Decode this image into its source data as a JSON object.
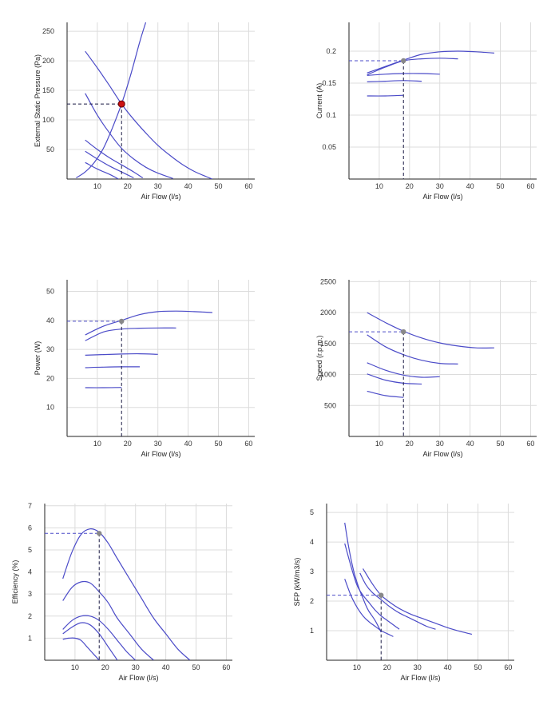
{
  "colors": {
    "curve": "#4b4bc8",
    "op_primary": "#cc1111",
    "op_secondary": "#888888",
    "guide_dark": "#1a1a44",
    "guide_light": "#4b4bc8"
  },
  "chart_data": [
    {
      "id": "pressure",
      "type": "line",
      "xlabel": "Air Flow (l/s)",
      "ylabel": "External Static Pressure (Pa)",
      "xlim": [
        0,
        62
      ],
      "ylim": [
        0,
        265
      ],
      "xticks": [
        10,
        20,
        30,
        40,
        50,
        60
      ],
      "yticks": [
        50,
        100,
        150,
        200,
        250
      ],
      "ytick_labels": [
        "50",
        "100",
        "150",
        "200",
        "250"
      ],
      "series": [
        {
          "x": [
            6,
            10,
            14,
            18,
            22,
            26,
            30,
            35
          ],
          "y": [
            145,
            108,
            78,
            52,
            34,
            20,
            10,
            1
          ]
        },
        {
          "x": [
            6,
            10,
            14,
            18,
            22,
            26,
            30,
            34,
            38,
            42,
            46,
            48
          ],
          "y": [
            216,
            188,
            158,
            127,
            101,
            78,
            57,
            40,
            25,
            13,
            4,
            0
          ]
        },
        {
          "x": [
            6,
            10,
            14,
            18,
            22,
            25
          ],
          "y": [
            66,
            50,
            36,
            24,
            12,
            2
          ]
        },
        {
          "x": [
            6,
            10,
            14,
            18,
            22
          ],
          "y": [
            47,
            34,
            22,
            12,
            2
          ]
        },
        {
          "x": [
            6,
            10,
            14,
            17
          ],
          "y": [
            28,
            17,
            8,
            0
          ]
        },
        {
          "x": [
            3,
            6,
            9,
            12,
            15,
            18,
            21,
            24,
            26
          ],
          "y": [
            2,
            12,
            28,
            52,
            87,
            127,
            176,
            232,
            265
          ]
        }
      ],
      "operating_point": {
        "x": 18,
        "y": 127,
        "style": "primary"
      }
    },
    {
      "id": "current",
      "type": "line",
      "xlabel": "Air Flow (l/s)",
      "ylabel": "Current (A)",
      "xlim": [
        0,
        62
      ],
      "ylim": [
        0,
        0.245
      ],
      "xticks": [
        10,
        20,
        30,
        40,
        50,
        60
      ],
      "yticks": [
        0.05,
        0.1,
        0.15,
        0.2
      ],
      "ytick_labels": [
        "0.05",
        "0.1",
        "0.15",
        "0.2"
      ],
      "series": [
        {
          "x": [
            6,
            12,
            18,
            24,
            30,
            36,
            42,
            48
          ],
          "y": [
            0.166,
            0.176,
            0.186,
            0.195,
            0.199,
            0.2,
            0.199,
            0.197
          ]
        },
        {
          "x": [
            6,
            12,
            18,
            24,
            30,
            36
          ],
          "y": [
            0.163,
            0.175,
            0.185,
            0.188,
            0.189,
            0.188
          ]
        },
        {
          "x": [
            6,
            12,
            18,
            24,
            30
          ],
          "y": [
            0.162,
            0.164,
            0.165,
            0.165,
            0.164
          ]
        },
        {
          "x": [
            6,
            12,
            18,
            24
          ],
          "y": [
            0.152,
            0.153,
            0.154,
            0.153
          ]
        },
        {
          "x": [
            6,
            12,
            18
          ],
          "y": [
            0.13,
            0.13,
            0.131
          ]
        }
      ],
      "operating_point": {
        "x": 18,
        "y": 0.185,
        "style": "secondary"
      }
    },
    {
      "id": "power",
      "type": "line",
      "xlabel": "Air Flow (l/s)",
      "ylabel": "Power (W)",
      "xlim": [
        0,
        62
      ],
      "ylim": [
        0,
        54
      ],
      "xticks": [
        10,
        20,
        30,
        40,
        50,
        60
      ],
      "yticks": [
        10,
        20,
        30,
        40,
        50
      ],
      "ytick_labels": [
        "10",
        "20",
        "30",
        "40",
        "50"
      ],
      "series": [
        {
          "x": [
            6,
            12,
            18,
            24,
            30,
            36,
            42,
            48
          ],
          "y": [
            35,
            38,
            40,
            42,
            43,
            43.2,
            43,
            42.7
          ]
        },
        {
          "x": [
            6,
            12,
            18,
            24,
            30,
            36
          ],
          "y": [
            33,
            36,
            37,
            37.3,
            37.4,
            37.4
          ]
        },
        {
          "x": [
            6,
            12,
            18,
            24,
            30
          ],
          "y": [
            28,
            28.2,
            28.4,
            28.5,
            28.3
          ]
        },
        {
          "x": [
            6,
            12,
            18,
            24
          ],
          "y": [
            23.7,
            23.9,
            24,
            24
          ]
        },
        {
          "x": [
            6,
            12,
            18
          ],
          "y": [
            16.8,
            16.8,
            16.9
          ]
        }
      ],
      "operating_point": {
        "x": 18,
        "y": 39.7,
        "style": "secondary"
      }
    },
    {
      "id": "speed",
      "type": "line",
      "xlabel": "Air Flow (l/s)",
      "ylabel": "Speed (r.p.m.)",
      "xlim": [
        0,
        62
      ],
      "ylim": [
        0,
        2530
      ],
      "xticks": [
        10,
        20,
        30,
        40,
        50,
        60
      ],
      "yticks": [
        500,
        1000,
        1500,
        2000,
        2500
      ],
      "ytick_labels": [
        "500",
        "1000",
        "1500",
        "2000",
        "2500"
      ],
      "series": [
        {
          "x": [
            6,
            12,
            18,
            24,
            30,
            36,
            42,
            48
          ],
          "y": [
            2000,
            1840,
            1700,
            1590,
            1510,
            1460,
            1430,
            1430
          ]
        },
        {
          "x": [
            6,
            12,
            18,
            24,
            30,
            36
          ],
          "y": [
            1640,
            1450,
            1320,
            1230,
            1180,
            1170
          ]
        },
        {
          "x": [
            6,
            12,
            18,
            24,
            30
          ],
          "y": [
            1190,
            1070,
            990,
            955,
            965
          ]
        },
        {
          "x": [
            6,
            12,
            18,
            24
          ],
          "y": [
            1010,
            910,
            860,
            845
          ]
        },
        {
          "x": [
            6,
            12,
            18
          ],
          "y": [
            730,
            660,
            630
          ]
        }
      ],
      "operating_point": {
        "x": 18,
        "y": 1690,
        "style": "secondary"
      }
    },
    {
      "id": "efficiency",
      "type": "line",
      "xlabel": "Air Flow (l/s)",
      "ylabel": "Efficiency (%)",
      "xlim": [
        0,
        62
      ],
      "ylim": [
        0,
        7.1
      ],
      "xticks": [
        10,
        20,
        30,
        40,
        50,
        60
      ],
      "yticks": [
        1,
        2,
        3,
        4,
        5,
        6,
        7
      ],
      "ytick_labels": [
        "1",
        "2",
        "3",
        "4",
        "5",
        "6",
        "7"
      ],
      "series": [
        {
          "x": [
            6,
            9,
            12,
            15,
            18,
            21,
            24,
            28,
            32,
            36,
            40,
            44,
            48
          ],
          "y": [
            3.7,
            4.9,
            5.7,
            5.95,
            5.8,
            5.3,
            4.6,
            3.7,
            2.8,
            1.9,
            1.2,
            0.5,
            0
          ]
        },
        {
          "x": [
            6,
            9,
            12,
            15,
            18,
            21,
            24,
            28,
            32,
            36
          ],
          "y": [
            2.7,
            3.3,
            3.55,
            3.5,
            3.1,
            2.6,
            1.9,
            1.2,
            0.5,
            0
          ]
        },
        {
          "x": [
            6,
            9,
            12,
            15,
            18,
            21,
            24,
            27,
            30
          ],
          "y": [
            1.4,
            1.8,
            2.0,
            2.0,
            1.8,
            1.4,
            0.9,
            0.4,
            0
          ]
        },
        {
          "x": [
            6,
            9,
            12,
            15,
            18,
            21,
            24
          ],
          "y": [
            1.2,
            1.5,
            1.7,
            1.6,
            1.2,
            0.6,
            0
          ]
        },
        {
          "x": [
            6,
            8,
            10,
            12,
            14,
            16,
            18
          ],
          "y": [
            0.95,
            1.0,
            1.0,
            0.9,
            0.6,
            0.3,
            0
          ]
        }
      ],
      "operating_point": {
        "x": 18,
        "y": 5.75,
        "style": "secondary"
      }
    },
    {
      "id": "sfp",
      "type": "line",
      "xlabel": "Air Flow (l/s)",
      "ylabel": "SFP (kW/m3/s)",
      "xlim": [
        0,
        62
      ],
      "ylim": [
        0,
        5.3
      ],
      "xticks": [
        10,
        20,
        30,
        40,
        50,
        60
      ],
      "yticks": [
        1,
        2,
        3,
        4,
        5
      ],
      "ytick_labels": [
        "1",
        "2",
        "3",
        "4",
        "5"
      ],
      "series": [
        {
          "x": [
            6,
            7,
            8,
            9,
            10,
            11,
            12,
            13,
            14,
            16,
            18
          ],
          "y": [
            4.65,
            4.0,
            3.45,
            3.0,
            2.65,
            2.35,
            2.1,
            1.85,
            1.65,
            1.35,
            0.95
          ]
        },
        {
          "x": [
            6,
            8,
            10,
            12,
            14,
            16,
            18,
            20,
            22,
            24
          ],
          "y": [
            3.95,
            3.2,
            2.55,
            2.2,
            1.95,
            1.7,
            1.5,
            1.35,
            1.2,
            1.05
          ]
        },
        {
          "x": [
            6,
            8,
            10,
            12,
            14,
            16,
            18,
            20,
            22
          ],
          "y": [
            2.75,
            2.2,
            1.8,
            1.5,
            1.3,
            1.15,
            1.0,
            0.9,
            0.8
          ]
        },
        {
          "x": [
            11,
            13,
            15,
            18,
            21,
            24,
            27,
            30,
            33,
            36
          ],
          "y": [
            2.95,
            2.55,
            2.3,
            2.05,
            1.8,
            1.6,
            1.45,
            1.3,
            1.15,
            1.05
          ]
        },
        {
          "x": [
            12,
            15,
            18,
            21,
            24,
            28,
            32,
            36,
            40,
            44,
            48
          ],
          "y": [
            3.1,
            2.6,
            2.2,
            1.95,
            1.75,
            1.55,
            1.4,
            1.25,
            1.1,
            0.98,
            0.88
          ]
        }
      ],
      "operating_point": {
        "x": 18,
        "y": 2.2,
        "style": "secondary"
      }
    }
  ]
}
